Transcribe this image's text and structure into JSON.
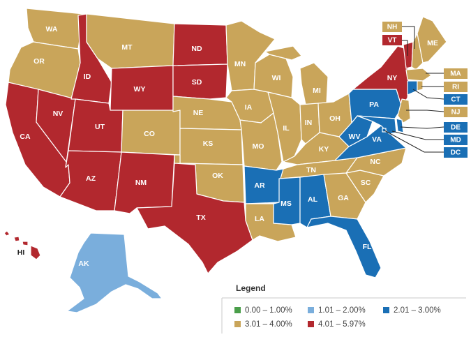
{
  "colors": {
    "c1": "#4a9e4a",
    "c2": "#7aaedc",
    "c3": "#1a6fb5",
    "c4": "#c9a55a",
    "c5": "#b2282e"
  },
  "legend": {
    "title": "Legend",
    "items": [
      {
        "label": "0.00 – 1.00%",
        "color": "#4a9e4a"
      },
      {
        "label": "1.01 – 2.00%",
        "color": "#7aaedc"
      },
      {
        "label": "2.01 – 3.00%",
        "color": "#1a6fb5"
      },
      {
        "label": "3.01 – 4.00%",
        "color": "#c9a55a"
      },
      {
        "label": "4.01 – 5.97%",
        "color": "#b2282e"
      }
    ]
  },
  "states": {
    "WA": {
      "label": "WA",
      "category": "3.01 – 4.00%"
    },
    "OR": {
      "label": "OR",
      "category": "3.01 – 4.00%"
    },
    "CA": {
      "label": "CA",
      "category": "4.01 – 5.97%"
    },
    "NV": {
      "label": "NV",
      "category": "4.01 – 5.97%"
    },
    "ID": {
      "label": "ID",
      "category": "4.01 – 5.97%"
    },
    "MT": {
      "label": "MT",
      "category": "3.01 – 4.00%"
    },
    "WY": {
      "label": "WY",
      "category": "4.01 – 5.97%"
    },
    "UT": {
      "label": "UT",
      "category": "4.01 – 5.97%"
    },
    "AZ": {
      "label": "AZ",
      "category": "4.01 – 5.97%"
    },
    "CO": {
      "label": "CO",
      "category": "3.01 – 4.00%"
    },
    "NM": {
      "label": "NM",
      "category": "4.01 – 5.97%"
    },
    "ND": {
      "label": "ND",
      "category": "4.01 – 5.97%"
    },
    "SD": {
      "label": "SD",
      "category": "4.01 – 5.97%"
    },
    "NE": {
      "label": "NE",
      "category": "3.01 – 4.00%"
    },
    "KS": {
      "label": "KS",
      "category": "3.01 – 4.00%"
    },
    "OK": {
      "label": "OK",
      "category": "3.01 – 4.00%"
    },
    "TX": {
      "label": "TX",
      "category": "4.01 – 5.97%"
    },
    "MN": {
      "label": "MN",
      "category": "3.01 – 4.00%"
    },
    "IA": {
      "label": "IA",
      "category": "3.01 – 4.00%"
    },
    "MO": {
      "label": "MO",
      "category": "3.01 – 4.00%"
    },
    "AR": {
      "label": "AR",
      "category": "2.01 – 3.00%"
    },
    "LA": {
      "label": "LA",
      "category": "3.01 – 4.00%"
    },
    "WI": {
      "label": "WI",
      "category": "3.01 – 4.00%"
    },
    "IL": {
      "label": "IL",
      "category": "3.01 – 4.00%"
    },
    "MI": {
      "label": "MI",
      "category": "3.01 – 4.00%"
    },
    "IN": {
      "label": "IN",
      "category": "3.01 – 4.00%"
    },
    "OH": {
      "label": "OH",
      "category": "3.01 – 4.00%"
    },
    "KY": {
      "label": "KY",
      "category": "3.01 – 4.00%"
    },
    "TN": {
      "label": "TN",
      "category": "3.01 – 4.00%"
    },
    "MS": {
      "label": "MS",
      "category": "2.01 – 3.00%"
    },
    "AL": {
      "label": "AL",
      "category": "2.01 – 3.00%"
    },
    "GA": {
      "label": "GA",
      "category": "3.01 – 4.00%"
    },
    "FL": {
      "label": "FL",
      "category": "2.01 – 3.00%"
    },
    "SC": {
      "label": "SC",
      "category": "3.01 – 4.00%"
    },
    "NC": {
      "label": "NC",
      "category": "3.01 – 4.00%"
    },
    "VA": {
      "label": "VA",
      "category": "2.01 – 3.00%"
    },
    "WV": {
      "label": "WV",
      "category": "2.01 – 3.00%"
    },
    "PA": {
      "label": "PA",
      "category": "2.01 – 3.00%"
    },
    "NY": {
      "label": "NY",
      "category": "4.01 – 5.97%"
    },
    "ME": {
      "label": "ME",
      "category": "3.01 – 4.00%"
    },
    "NH": {
      "label": "NH",
      "category": "3.01 – 4.00%"
    },
    "VT": {
      "label": "VT",
      "category": "4.01 – 5.97%"
    },
    "MA": {
      "label": "MA",
      "category": "3.01 – 4.00%"
    },
    "RI": {
      "label": "RI",
      "category": "3.01 – 4.00%"
    },
    "CT": {
      "label": "CT",
      "category": "2.01 – 3.00%"
    },
    "NJ": {
      "label": "NJ",
      "category": "3.01 – 4.00%"
    },
    "DE": {
      "label": "DE",
      "category": "2.01 – 3.00%"
    },
    "MD": {
      "label": "MD",
      "category": "2.01 – 3.00%"
    },
    "DC": {
      "label": "DC",
      "category": "2.01 – 3.00%"
    },
    "AK": {
      "label": "AK",
      "category": "1.01 – 2.00%"
    },
    "HI": {
      "label": "HI",
      "category": "4.01 – 5.97%"
    }
  }
}
